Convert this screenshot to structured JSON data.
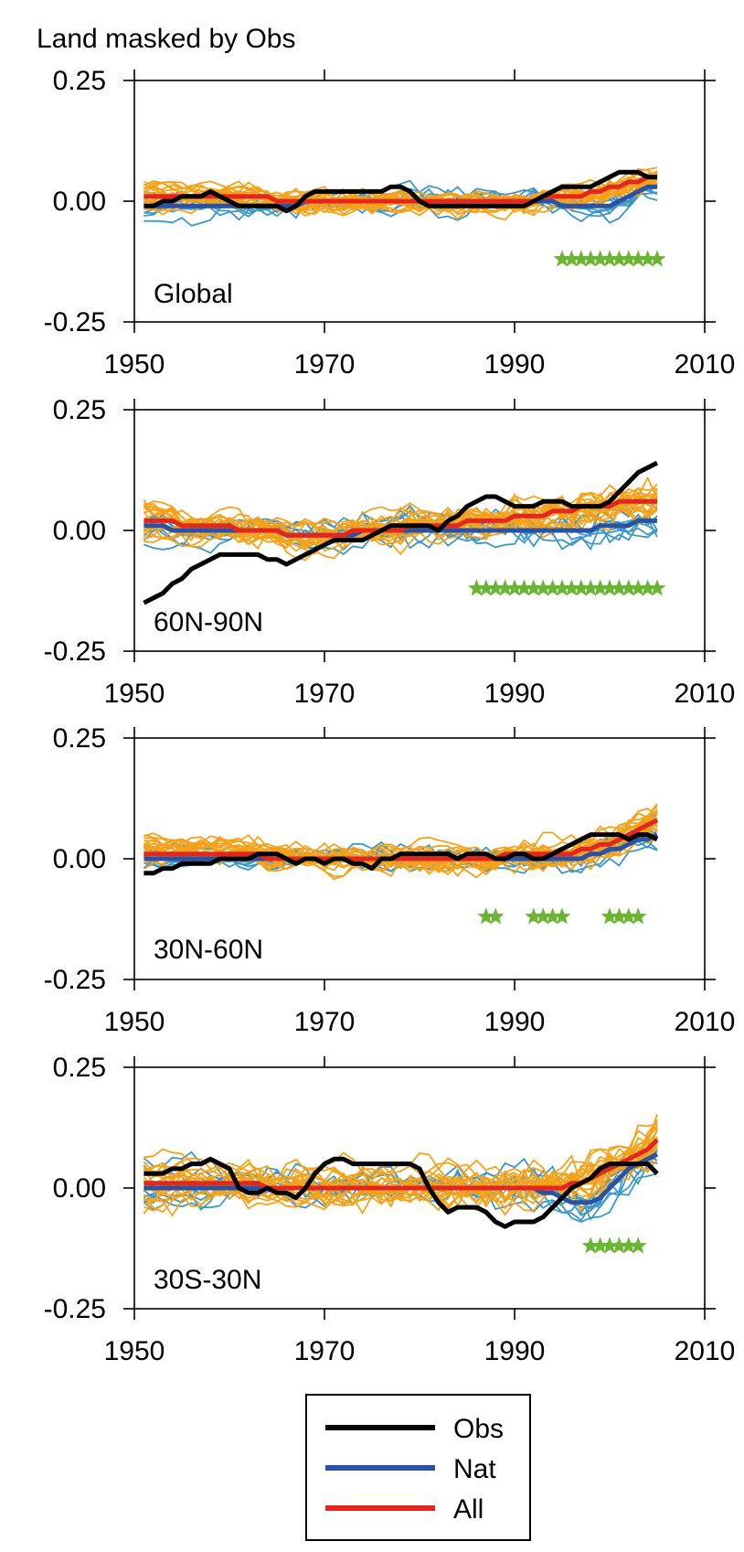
{
  "header": {
    "title": "Land masked by Obs"
  },
  "colors": {
    "obs": "#000000",
    "nat": "#2a52a4",
    "all": "#e3271e",
    "all_members": "#f5a21b",
    "nat_members": "#3a98c8",
    "stars": "#6bb534"
  },
  "legend": {
    "items": [
      {
        "key": "obs",
        "label": "Obs"
      },
      {
        "key": "nat",
        "label": "Nat"
      },
      {
        "key": "all",
        "label": "All"
      }
    ]
  },
  "chart_data": [
    {
      "type": "line",
      "panel_label": "Global",
      "xlim": [
        1950,
        2010
      ],
      "ylim": [
        -0.25,
        0.25
      ],
      "xticks": [
        "1950",
        "1970",
        "1990",
        "2010"
      ],
      "yticks": [
        "0.25",
        "0.00",
        "-0.25"
      ],
      "x_start": 1951,
      "series": [
        {
          "name": "Obs",
          "values": [
            -0.01,
            -0.01,
            0.0,
            0.0,
            0.01,
            0.01,
            0.01,
            0.02,
            0.01,
            0.0,
            -0.01,
            -0.01,
            -0.01,
            -0.01,
            -0.01,
            -0.02,
            -0.01,
            0.01,
            0.02,
            0.02,
            0.02,
            0.02,
            0.02,
            0.02,
            0.02,
            0.02,
            0.03,
            0.03,
            0.02,
            0.0,
            -0.01,
            -0.01,
            -0.01,
            -0.01,
            -0.01,
            -0.01,
            -0.01,
            -0.01,
            -0.01,
            -0.01,
            -0.01,
            0.0,
            0.01,
            0.02,
            0.03,
            0.03,
            0.03,
            0.03,
            0.04,
            0.05,
            0.06,
            0.06,
            0.06,
            0.05,
            0.05
          ]
        },
        {
          "name": "Nat",
          "values": [
            -0.01,
            -0.01,
            -0.01,
            -0.01,
            -0.01,
            -0.01,
            -0.01,
            -0.01,
            -0.01,
            -0.01,
            -0.01,
            -0.01,
            -0.01,
            -0.01,
            -0.01,
            -0.01,
            -0.01,
            0.0,
            0.0,
            0.0,
            0.0,
            0.0,
            0.0,
            0.0,
            0.0,
            0.0,
            0.0,
            0.0,
            0.0,
            0.0,
            0.0,
            0.0,
            0.0,
            0.0,
            0.0,
            0.0,
            0.0,
            0.0,
            0.0,
            0.0,
            0.0,
            0.0,
            0.0,
            0.0,
            -0.01,
            -0.01,
            -0.01,
            -0.01,
            -0.01,
            -0.01,
            0.0,
            0.01,
            0.02,
            0.03,
            0.03
          ]
        },
        {
          "name": "All",
          "values": [
            0.01,
            0.01,
            0.01,
            0.01,
            0.01,
            0.01,
            0.01,
            0.01,
            0.01,
            0.01,
            0.01,
            0.01,
            0.01,
            0.01,
            0.0,
            0.0,
            0.0,
            0.0,
            0.0,
            0.0,
            0.0,
            0.0,
            0.0,
            0.0,
            0.0,
            0.0,
            0.0,
            0.0,
            0.0,
            0.0,
            0.0,
            0.0,
            0.0,
            0.0,
            0.0,
            0.0,
            0.0,
            0.0,
            0.0,
            0.0,
            0.0,
            0.0,
            0.01,
            0.01,
            0.01,
            0.01,
            0.01,
            0.02,
            0.02,
            0.03,
            0.03,
            0.04,
            0.04,
            0.05,
            0.05
          ]
        }
      ],
      "ensemble": {
        "all_members": 20,
        "nat_members": 8,
        "spread": 0.035
      },
      "stars": {
        "y": -0.12,
        "years": [
          1995,
          1996,
          1997,
          1998,
          1999,
          2000,
          2001,
          2002,
          2003,
          2004,
          2005
        ]
      }
    },
    {
      "type": "line",
      "panel_label": "60N-90N",
      "xlim": [
        1950,
        2010
      ],
      "ylim": [
        -0.25,
        0.25
      ],
      "xticks": [
        "1950",
        "1970",
        "1990",
        "2010"
      ],
      "yticks": [
        "0.25",
        "0.00",
        "-0.25"
      ],
      "x_start": 1951,
      "series": [
        {
          "name": "Obs",
          "values": [
            -0.15,
            -0.14,
            -0.13,
            -0.11,
            -0.1,
            -0.08,
            -0.07,
            -0.06,
            -0.05,
            -0.05,
            -0.05,
            -0.05,
            -0.05,
            -0.06,
            -0.06,
            -0.07,
            -0.06,
            -0.05,
            -0.04,
            -0.03,
            -0.02,
            -0.02,
            -0.02,
            -0.02,
            -0.01,
            0.0,
            0.01,
            0.01,
            0.01,
            0.01,
            0.01,
            0.0,
            0.02,
            0.03,
            0.05,
            0.06,
            0.07,
            0.07,
            0.06,
            0.05,
            0.05,
            0.05,
            0.06,
            0.06,
            0.06,
            0.05,
            0.05,
            0.05,
            0.05,
            0.06,
            0.08,
            0.1,
            0.12,
            0.13,
            0.14
          ]
        },
        {
          "name": "Nat",
          "values": [
            0.01,
            0.01,
            0.01,
            0.0,
            0.0,
            0.0,
            0.0,
            0.0,
            0.0,
            0.0,
            0.0,
            0.0,
            0.0,
            0.0,
            0.0,
            -0.01,
            -0.01,
            -0.01,
            -0.01,
            -0.01,
            -0.01,
            -0.01,
            -0.01,
            0.0,
            0.0,
            0.0,
            0.0,
            0.0,
            0.0,
            0.0,
            0.0,
            0.0,
            0.0,
            0.0,
            0.0,
            0.0,
            0.0,
            0.0,
            0.0,
            0.0,
            0.0,
            0.0,
            0.0,
            0.0,
            0.0,
            0.0,
            0.0,
            0.0,
            0.01,
            0.01,
            0.01,
            0.01,
            0.02,
            0.02,
            0.02
          ]
        },
        {
          "name": "All",
          "values": [
            0.02,
            0.02,
            0.02,
            0.02,
            0.01,
            0.01,
            0.01,
            0.01,
            0.01,
            0.01,
            0.0,
            0.0,
            0.0,
            0.0,
            0.0,
            -0.01,
            -0.01,
            -0.01,
            -0.01,
            -0.01,
            -0.01,
            -0.01,
            0.0,
            0.0,
            0.0,
            0.0,
            0.0,
            0.0,
            0.01,
            0.01,
            0.01,
            0.01,
            0.01,
            0.01,
            0.02,
            0.02,
            0.02,
            0.02,
            0.02,
            0.03,
            0.03,
            0.03,
            0.03,
            0.04,
            0.04,
            0.04,
            0.05,
            0.05,
            0.05,
            0.05,
            0.06,
            0.06,
            0.06,
            0.06,
            0.06
          ]
        }
      ],
      "ensemble": {
        "all_members": 20,
        "nat_members": 8,
        "spread": 0.05
      },
      "stars": {
        "y": -0.12,
        "years": [
          1986,
          1987,
          1988,
          1989,
          1990,
          1991,
          1992,
          1993,
          1994,
          1995,
          1996,
          1997,
          1998,
          1999,
          2000,
          2001,
          2002,
          2003,
          2004,
          2005
        ]
      }
    },
    {
      "type": "line",
      "panel_label": "30N-60N",
      "xlim": [
        1950,
        2010
      ],
      "ylim": [
        -0.25,
        0.25
      ],
      "xticks": [
        "1950",
        "1970",
        "1990",
        "2010"
      ],
      "yticks": [
        "0.25",
        "0.00",
        "-0.25"
      ],
      "x_start": 1951,
      "series": [
        {
          "name": "Obs",
          "values": [
            -0.03,
            -0.03,
            -0.02,
            -0.02,
            -0.01,
            -0.01,
            -0.01,
            -0.01,
            0.0,
            0.0,
            0.0,
            0.0,
            0.01,
            0.01,
            0.01,
            0.0,
            -0.01,
            0.0,
            0.0,
            -0.01,
            0.0,
            0.0,
            -0.01,
            -0.01,
            -0.02,
            0.0,
            0.0,
            0.01,
            0.01,
            0.01,
            0.01,
            0.01,
            0.01,
            0.0,
            0.01,
            0.01,
            0.01,
            0.0,
            0.0,
            0.01,
            0.01,
            0.0,
            0.0,
            0.01,
            0.02,
            0.03,
            0.04,
            0.05,
            0.05,
            0.05,
            0.05,
            0.04,
            0.05,
            0.05,
            0.04
          ]
        },
        {
          "name": "Nat",
          "values": [
            0.0,
            0.0,
            0.0,
            0.0,
            0.0,
            0.0,
            0.0,
            0.0,
            0.0,
            0.0,
            0.0,
            0.0,
            0.0,
            0.0,
            0.0,
            0.0,
            0.0,
            0.0,
            0.0,
            0.0,
            0.0,
            0.0,
            0.0,
            0.0,
            0.0,
            0.0,
            0.0,
            0.0,
            0.0,
            0.0,
            0.0,
            0.0,
            0.0,
            0.0,
            0.0,
            0.0,
            0.0,
            0.0,
            0.0,
            0.0,
            0.0,
            0.0,
            0.0,
            0.0,
            0.0,
            0.0,
            0.0,
            0.01,
            0.01,
            0.02,
            0.02,
            0.03,
            0.04,
            0.04,
            0.05
          ]
        },
        {
          "name": "All",
          "values": [
            0.01,
            0.01,
            0.01,
            0.01,
            0.01,
            0.01,
            0.01,
            0.01,
            0.01,
            0.01,
            0.01,
            0.01,
            0.01,
            0.0,
            0.0,
            0.0,
            0.0,
            0.0,
            0.0,
            0.0,
            0.0,
            0.0,
            0.0,
            0.0,
            0.0,
            0.0,
            0.0,
            0.0,
            0.0,
            0.0,
            0.0,
            0.0,
            0.0,
            0.0,
            0.0,
            0.0,
            0.0,
            0.0,
            0.01,
            0.01,
            0.01,
            0.01,
            0.01,
            0.01,
            0.01,
            0.01,
            0.02,
            0.02,
            0.03,
            0.03,
            0.04,
            0.05,
            0.06,
            0.07,
            0.08
          ]
        }
      ],
      "ensemble": {
        "all_members": 20,
        "nat_members": 8,
        "spread": 0.04
      },
      "stars": {
        "y": -0.12,
        "years": [
          1987,
          1988,
          1992,
          1993,
          1994,
          1995,
          2000,
          2001,
          2002,
          2003
        ]
      }
    },
    {
      "type": "line",
      "panel_label": "30S-30N",
      "xlim": [
        1950,
        2010
      ],
      "ylim": [
        -0.25,
        0.25
      ],
      "xticks": [
        "1950",
        "1970",
        "1990",
        "2010"
      ],
      "yticks": [
        "0.25",
        "0.00",
        "-0.25"
      ],
      "x_start": 1951,
      "series": [
        {
          "name": "Obs",
          "values": [
            0.03,
            0.03,
            0.03,
            0.04,
            0.04,
            0.05,
            0.05,
            0.06,
            0.05,
            0.04,
            0.0,
            -0.01,
            -0.01,
            0.0,
            -0.01,
            -0.01,
            -0.02,
            0.0,
            0.03,
            0.05,
            0.06,
            0.06,
            0.05,
            0.05,
            0.05,
            0.05,
            0.05,
            0.05,
            0.05,
            0.04,
            0.0,
            -0.03,
            -0.05,
            -0.04,
            -0.04,
            -0.04,
            -0.05,
            -0.07,
            -0.08,
            -0.07,
            -0.07,
            -0.07,
            -0.06,
            -0.04,
            -0.02,
            0.0,
            0.01,
            0.02,
            0.04,
            0.05,
            0.05,
            0.05,
            0.05,
            0.05,
            0.03
          ]
        },
        {
          "name": "Nat",
          "values": [
            0.0,
            0.0,
            0.0,
            0.0,
            0.0,
            0.0,
            0.0,
            0.0,
            0.0,
            0.0,
            0.0,
            0.0,
            0.0,
            0.0,
            0.0,
            0.0,
            0.0,
            0.0,
            0.0,
            0.0,
            0.0,
            0.0,
            0.0,
            0.0,
            0.0,
            0.0,
            0.0,
            0.0,
            0.0,
            0.0,
            0.0,
            0.0,
            0.0,
            0.0,
            0.0,
            0.0,
            0.0,
            0.0,
            0.0,
            0.0,
            0.0,
            0.0,
            -0.01,
            -0.01,
            -0.02,
            -0.03,
            -0.03,
            -0.03,
            -0.02,
            0.0,
            0.02,
            0.04,
            0.05,
            0.06,
            0.07
          ]
        },
        {
          "name": "All",
          "values": [
            0.01,
            0.01,
            0.01,
            0.01,
            0.01,
            0.01,
            0.01,
            0.01,
            0.01,
            0.01,
            0.01,
            0.01,
            0.01,
            0.0,
            0.0,
            0.0,
            0.0,
            0.0,
            0.0,
            0.0,
            0.0,
            0.0,
            0.0,
            0.0,
            0.0,
            0.0,
            0.0,
            0.0,
            0.0,
            0.0,
            0.0,
            0.0,
            0.0,
            0.0,
            0.0,
            0.0,
            0.0,
            0.0,
            0.0,
            0.0,
            0.0,
            0.0,
            0.0,
            0.0,
            0.0,
            0.01,
            0.01,
            0.02,
            0.03,
            0.04,
            0.05,
            0.06,
            0.07,
            0.08,
            0.1
          ]
        }
      ],
      "ensemble": {
        "all_members": 20,
        "nat_members": 8,
        "spread": 0.06
      },
      "stars": {
        "y": -0.12,
        "years": [
          1998,
          1999,
          2000,
          2001,
          2002,
          2003
        ]
      }
    }
  ]
}
